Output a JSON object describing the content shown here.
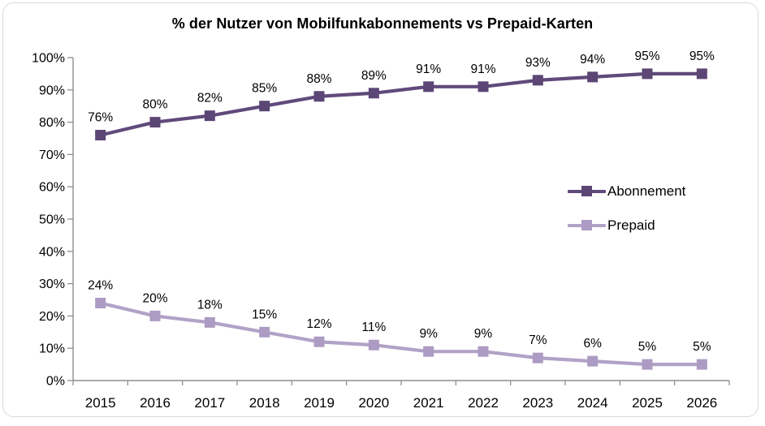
{
  "chart_data": {
    "type": "line",
    "title": "% der Nutzer von Mobilfunkabonnements vs Prepaid-Karten",
    "categories": [
      "2015",
      "2016",
      "2017",
      "2018",
      "2019",
      "2020",
      "2021",
      "2022",
      "2023",
      "2024",
      "2025",
      "2026"
    ],
    "series": [
      {
        "name": "Abonnement",
        "values": [
          76,
          80,
          82,
          85,
          88,
          89,
          91,
          91,
          93,
          94,
          95,
          95
        ],
        "color": "#604A7B",
        "marker_color": "#5B4675"
      },
      {
        "name": "Prepaid",
        "values": [
          24,
          20,
          18,
          15,
          12,
          11,
          9,
          9,
          7,
          6,
          5,
          5
        ],
        "color": "#B2A2C7",
        "marker_color": "#AC9BC3"
      }
    ],
    "ylim": [
      0,
      100
    ],
    "y_tick_labels": [
      "0%",
      "10%",
      "20%",
      "30%",
      "40%",
      "50%",
      "60%",
      "70%",
      "80%",
      "90%",
      "100%"
    ],
    "data_label_suffix": "%",
    "grid": false,
    "legend_position": "right-middle",
    "axis_color": "#8E8E8E",
    "label_color": "#000000",
    "background": "#FFFFFF"
  }
}
